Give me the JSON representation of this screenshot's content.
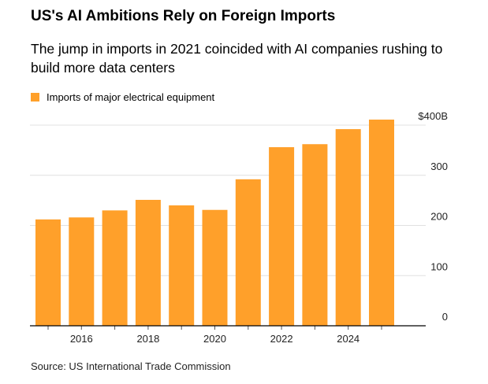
{
  "title": "US's AI Ambitions Rely on Foreign Imports",
  "subtitle": "The jump in imports in 2021 coincided with AI companies rushing to build more data centers",
  "source": "Source: US International Trade Commission",
  "chart_data": {
    "type": "bar",
    "title": "US's AI Ambitions Rely on Foreign Imports",
    "legend": [
      {
        "label": "Imports of major electrical equipment",
        "color": "#ffa02a"
      }
    ],
    "categories": [
      2015,
      2016,
      2017,
      2018,
      2019,
      2020,
      2021,
      2022,
      2023,
      2024,
      2025
    ],
    "values": [
      212,
      216,
      230,
      251,
      240,
      231,
      292,
      356,
      362,
      392,
      411
    ],
    "x_tick_labels": [
      "2016",
      "2018",
      "2020",
      "2022",
      "2024"
    ],
    "y_ticks": [
      0,
      100,
      200,
      300,
      400
    ],
    "y_tick_labels": [
      "0",
      "100",
      "200",
      "300",
      "$400B"
    ],
    "ylim": [
      0,
      400
    ],
    "ylabel": "",
    "xlabel": "",
    "grid": true,
    "legend_position": "top-left"
  }
}
